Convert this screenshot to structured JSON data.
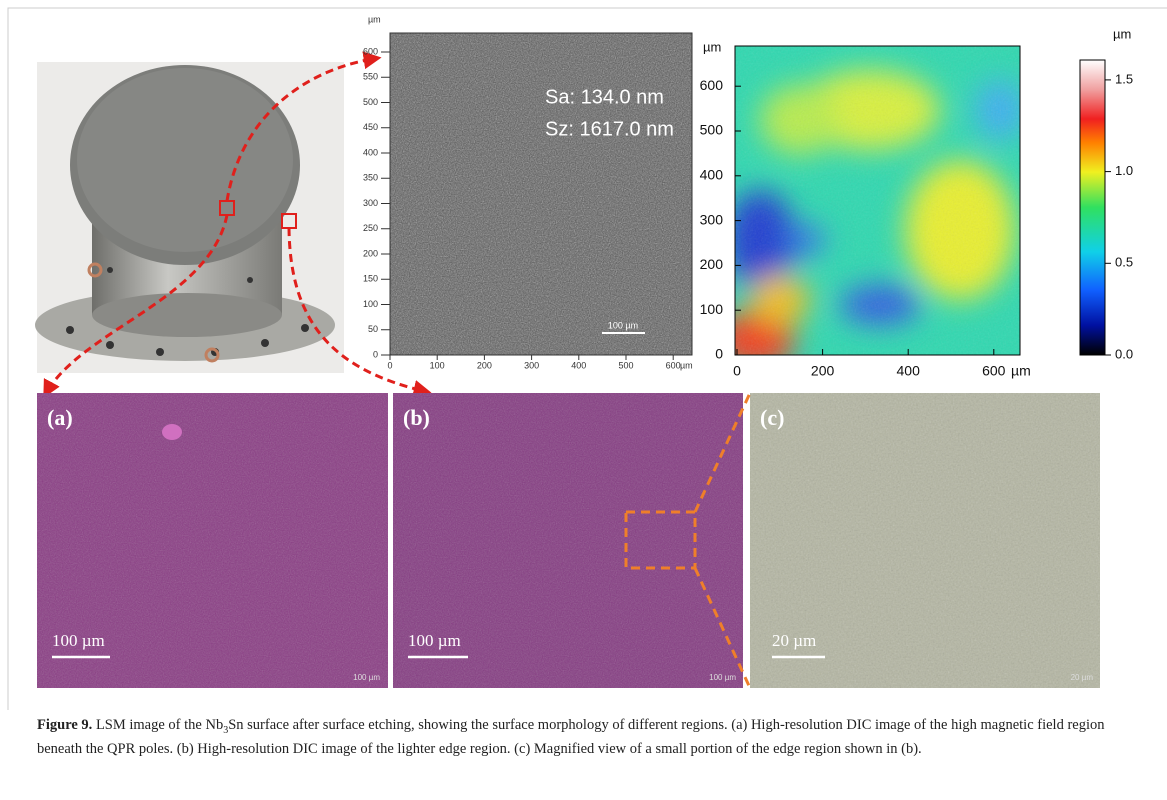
{
  "figure": {
    "sem": {
      "y_unit": "µm",
      "x_unit": "µm",
      "yticks": [
        0,
        50,
        100,
        150,
        200,
        250,
        300,
        350,
        400,
        450,
        500,
        550,
        600
      ],
      "xticks": [
        0,
        100,
        200,
        300,
        400,
        500,
        600
      ],
      "roughness": [
        "Sa: 134.0 nm",
        "Sz: 1617.0 nm"
      ],
      "scale_bar": "100 µm"
    },
    "height_map": {
      "y_unit": "µm",
      "x_unit": "µm",
      "yticks": [
        0,
        100,
        200,
        300,
        400,
        500,
        600
      ],
      "xticks": [
        0,
        200,
        400,
        600
      ]
    },
    "colorbar": {
      "unit": "µm",
      "ticks": [
        "0.0",
        "0.5",
        "1.0",
        "1.5"
      ]
    },
    "panels": [
      {
        "label": "(a)",
        "scale_bar": "100 µm",
        "corner_scale": "100 µm"
      },
      {
        "label": "(b)",
        "scale_bar": "100 µm",
        "corner_scale": "100 µm"
      },
      {
        "label": "(c)",
        "scale_bar": "20 µm",
        "corner_scale": "20 µm"
      }
    ]
  },
  "caption": {
    "label": "Figure 9.",
    "text_before": "LSM image of the Nb",
    "subscript": "3",
    "text_after": "Sn surface after surface etching, showing the surface morphology of different regions. (a) High-resolution DIC image of the high magnetic field region beneath the QPR poles. (b) High-resolution DIC image of the lighter edge region. (c) Magnified view of a small portion of the edge region shown in (b)."
  }
}
